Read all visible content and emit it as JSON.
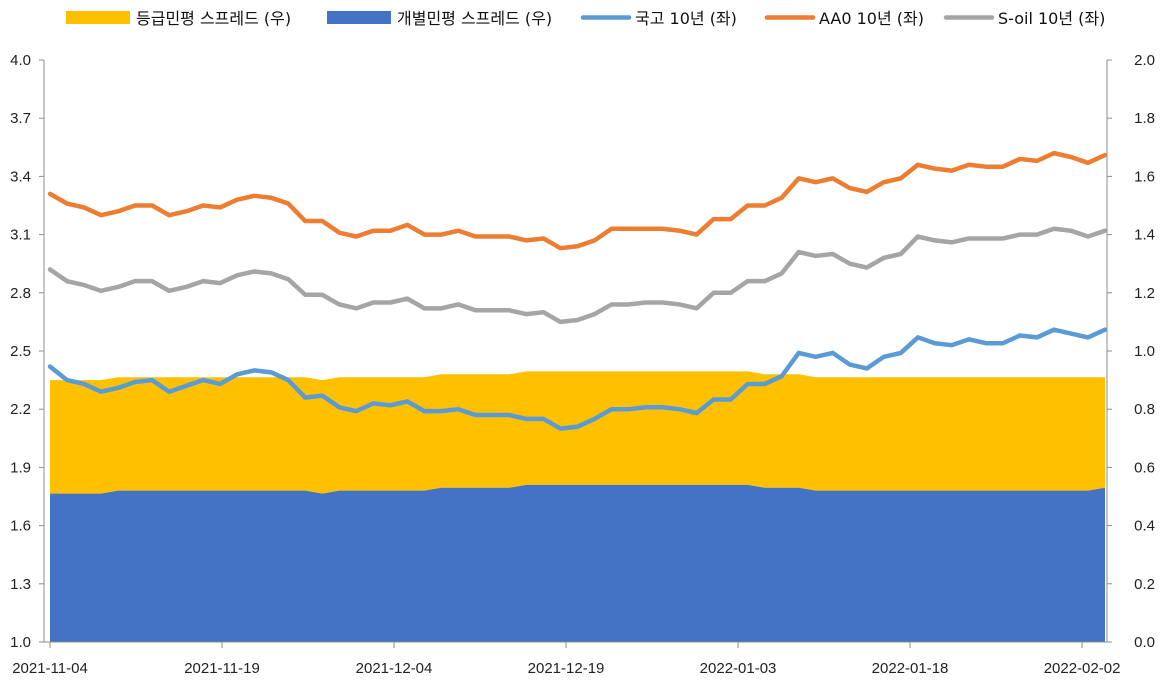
{
  "chart_data": {
    "type": "area",
    "title": "",
    "legend_position": "top",
    "grid": false,
    "x": [
      "2021-11-04",
      "2021-11-05",
      "2021-11-08",
      "2021-11-09",
      "2021-11-10",
      "2021-11-11",
      "2021-11-12",
      "2021-11-15",
      "2021-11-16",
      "2021-11-17",
      "2021-11-18",
      "2021-11-19",
      "2021-11-22",
      "2021-11-23",
      "2021-11-24",
      "2021-11-25",
      "2021-11-26",
      "2021-11-29",
      "2021-11-30",
      "2021-12-01",
      "2021-12-02",
      "2021-12-03",
      "2021-12-06",
      "2021-12-07",
      "2021-12-08",
      "2021-12-09",
      "2021-12-10",
      "2021-12-13",
      "2021-12-14",
      "2021-12-15",
      "2021-12-16",
      "2021-12-17",
      "2021-12-20",
      "2021-12-21",
      "2021-12-22",
      "2021-12-23",
      "2021-12-24",
      "2021-12-27",
      "2021-12-28",
      "2021-12-29",
      "2021-12-30",
      "2022-01-03",
      "2022-01-04",
      "2022-01-05",
      "2022-01-06",
      "2022-01-07",
      "2022-01-10",
      "2022-01-11",
      "2022-01-12",
      "2022-01-13",
      "2022-01-14",
      "2022-01-17",
      "2022-01-18",
      "2022-01-19",
      "2022-01-20",
      "2022-01-21",
      "2022-01-24",
      "2022-01-25",
      "2022-01-26",
      "2022-01-27",
      "2022-01-28",
      "2022-02-03",
      "2022-02-04"
    ],
    "x_ticks": [
      "2021-11-04",
      "2021-11-19",
      "2021-12-04",
      "2021-12-19",
      "2022-01-03",
      "2022-01-18",
      "2022-02-02"
    ],
    "y_left": {
      "min": 1.0,
      "max": 4.0,
      "ticks": [
        "1.0",
        "1.3",
        "1.6",
        "1.9",
        "2.2",
        "2.5",
        "2.8",
        "3.1",
        "3.4",
        "3.7",
        "4.0"
      ]
    },
    "y_right": {
      "min": 0.0,
      "max": 2.0,
      "ticks": [
        "0.0",
        "0.2",
        "0.4",
        "0.6",
        "0.8",
        "1.0",
        "1.2",
        "1.4",
        "1.6",
        "1.8",
        "2.0"
      ]
    },
    "series": [
      {
        "name": "등급민평 스프레드 (우)",
        "kind": "area",
        "axis": "right",
        "stacked": true,
        "color": "#FFC000",
        "values": [
          0.39,
          0.39,
          0.39,
          0.39,
          0.39,
          0.39,
          0.39,
          0.39,
          0.39,
          0.39,
          0.39,
          0.39,
          0.39,
          0.39,
          0.39,
          0.39,
          0.39,
          0.39,
          0.39,
          0.39,
          0.39,
          0.39,
          0.39,
          0.39,
          0.39,
          0.39,
          0.39,
          0.39,
          0.39,
          0.39,
          0.39,
          0.39,
          0.39,
          0.39,
          0.39,
          0.39,
          0.39,
          0.39,
          0.39,
          0.39,
          0.39,
          0.39,
          0.39,
          0.39,
          0.39,
          0.39,
          0.39,
          0.39,
          0.39,
          0.39,
          0.39,
          0.39,
          0.39,
          0.39,
          0.39,
          0.39,
          0.39,
          0.39,
          0.39,
          0.39,
          0.39,
          0.39,
          0.38
        ]
      },
      {
        "name": "개별민평 스프레드 (우)",
        "kind": "area",
        "axis": "right",
        "color": "#4472C4",
        "values": [
          0.51,
          0.51,
          0.51,
          0.51,
          0.52,
          0.52,
          0.52,
          0.52,
          0.52,
          0.52,
          0.52,
          0.52,
          0.52,
          0.52,
          0.52,
          0.52,
          0.51,
          0.52,
          0.52,
          0.52,
          0.52,
          0.52,
          0.52,
          0.53,
          0.53,
          0.53,
          0.53,
          0.53,
          0.54,
          0.54,
          0.54,
          0.54,
          0.54,
          0.54,
          0.54,
          0.54,
          0.54,
          0.54,
          0.54,
          0.54,
          0.54,
          0.54,
          0.53,
          0.53,
          0.53,
          0.52,
          0.52,
          0.52,
          0.52,
          0.52,
          0.52,
          0.52,
          0.52,
          0.52,
          0.52,
          0.52,
          0.52,
          0.52,
          0.52,
          0.52,
          0.52,
          0.52,
          0.53
        ]
      },
      {
        "name": "국고 10년 (좌)",
        "kind": "line",
        "axis": "left",
        "color": "#5B9BD5",
        "values": [
          2.42,
          2.35,
          2.33,
          2.29,
          2.31,
          2.34,
          2.35,
          2.29,
          2.32,
          2.35,
          2.33,
          2.38,
          2.4,
          2.39,
          2.35,
          2.26,
          2.27,
          2.21,
          2.19,
          2.23,
          2.22,
          2.24,
          2.19,
          2.19,
          2.2,
          2.17,
          2.17,
          2.17,
          2.15,
          2.15,
          2.1,
          2.11,
          2.15,
          2.2,
          2.2,
          2.21,
          2.21,
          2.2,
          2.18,
          2.25,
          2.25,
          2.33,
          2.33,
          2.37,
          2.49,
          2.47,
          2.49,
          2.43,
          2.41,
          2.47,
          2.49,
          2.57,
          2.54,
          2.53,
          2.56,
          2.54,
          2.54,
          2.58,
          2.57,
          2.61,
          2.59,
          2.57,
          2.61
        ]
      },
      {
        "name": "AA0 10년 (좌)",
        "kind": "line",
        "axis": "left",
        "color": "#ED7D31",
        "values": [
          3.31,
          3.26,
          3.24,
          3.2,
          3.22,
          3.25,
          3.25,
          3.2,
          3.22,
          3.25,
          3.24,
          3.28,
          3.3,
          3.29,
          3.26,
          3.17,
          3.17,
          3.11,
          3.09,
          3.12,
          3.12,
          3.15,
          3.1,
          3.1,
          3.12,
          3.09,
          3.09,
          3.09,
          3.07,
          3.08,
          3.03,
          3.04,
          3.07,
          3.13,
          3.13,
          3.13,
          3.13,
          3.12,
          3.1,
          3.18,
          3.18,
          3.25,
          3.25,
          3.29,
          3.39,
          3.37,
          3.39,
          3.34,
          3.32,
          3.37,
          3.39,
          3.46,
          3.44,
          3.43,
          3.46,
          3.45,
          3.45,
          3.49,
          3.48,
          3.52,
          3.5,
          3.47,
          3.51
        ]
      },
      {
        "name": "S-oil 10년 (좌)",
        "kind": "line",
        "axis": "left",
        "color": "#A5A5A5",
        "values": [
          2.92,
          2.86,
          2.84,
          2.81,
          2.83,
          2.86,
          2.86,
          2.81,
          2.83,
          2.86,
          2.85,
          2.89,
          2.91,
          2.9,
          2.87,
          2.79,
          2.79,
          2.74,
          2.72,
          2.75,
          2.75,
          2.77,
          2.72,
          2.72,
          2.74,
          2.71,
          2.71,
          2.71,
          2.69,
          2.7,
          2.65,
          2.66,
          2.69,
          2.74,
          2.74,
          2.75,
          2.75,
          2.74,
          2.72,
          2.8,
          2.8,
          2.86,
          2.86,
          2.9,
          3.01,
          2.99,
          3.0,
          2.95,
          2.93,
          2.98,
          3.0,
          3.09,
          3.07,
          3.06,
          3.08,
          3.08,
          3.08,
          3.1,
          3.1,
          3.13,
          3.12,
          3.09,
          3.12
        ]
      }
    ]
  }
}
